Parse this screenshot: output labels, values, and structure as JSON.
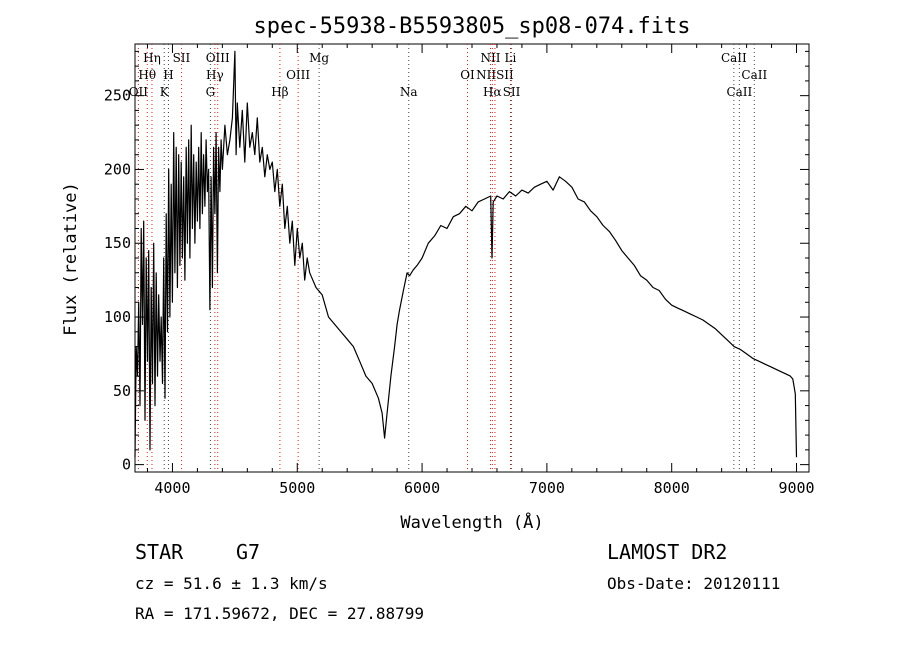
{
  "chart_data": {
    "type": "line",
    "title": "spec-55938-B5593805_sp08-074.fits",
    "xlabel": "Wavelength (Å)",
    "ylabel": "Flux (relative)",
    "xlim": [
      3700,
      9100
    ],
    "ylim": [
      -5,
      285
    ],
    "x_ticks": [
      4000,
      5000,
      6000,
      7000,
      8000,
      9000
    ],
    "y_ticks": [
      0,
      50,
      100,
      150,
      200,
      250
    ],
    "grid": false,
    "series": [
      {
        "x": [
          3700,
          3710,
          3720,
          3730,
          3740,
          3750,
          3760,
          3770,
          3780,
          3790,
          3800,
          3810,
          3820,
          3830,
          3840,
          3850,
          3860,
          3870,
          3880,
          3890,
          3900,
          3910,
          3920,
          3930,
          3940,
          3950,
          3960,
          3970,
          3980,
          3990,
          4000,
          4010,
          4020,
          4030,
          4040,
          4050,
          4060,
          4070,
          4080,
          4090,
          4100,
          4110,
          4120,
          4130,
          4140,
          4150,
          4160,
          4170,
          4180,
          4190,
          4200,
          4210,
          4220,
          4230,
          4240,
          4250,
          4260,
          4270,
          4280,
          4290,
          4300,
          4310,
          4320,
          4330,
          4340,
          4350,
          4360,
          4370,
          4380,
          4390,
          4400,
          4420,
          4440,
          4460,
          4480,
          4500,
          4510,
          4520,
          4540,
          4560,
          4580,
          4600,
          4620,
          4640,
          4660,
          4680,
          4700,
          4720,
          4740,
          4760,
          4780,
          4800,
          4820,
          4840,
          4860,
          4880,
          4900,
          4920,
          4940,
          4960,
          4980,
          5000,
          5020,
          5040,
          5060,
          5080,
          5100,
          5150,
          5200,
          5250,
          5300,
          5350,
          5400,
          5450,
          5500,
          5550,
          5600,
          5650,
          5680,
          5700,
          5720,
          5750,
          5780,
          5800,
          5820,
          5850,
          5880,
          5900,
          5930,
          5960,
          6000,
          6050,
          6100,
          6150,
          6200,
          6250,
          6300,
          6350,
          6400,
          6450,
          6500,
          6550,
          6560,
          6570,
          6600,
          6650,
          6700,
          6750,
          6800,
          6850,
          6900,
          6950,
          7000,
          7050,
          7100,
          7150,
          7200,
          7250,
          7300,
          7350,
          7400,
          7450,
          7500,
          7550,
          7600,
          7650,
          7700,
          7750,
          7800,
          7850,
          7900,
          7950,
          8000,
          8050,
          8100,
          8150,
          8200,
          8250,
          8300,
          8350,
          8400,
          8450,
          8500,
          8550,
          8600,
          8650,
          8700,
          8750,
          8800,
          8850,
          8900,
          8950,
          8970,
          8990,
          9000
        ],
        "y": [
          5,
          80,
          60,
          110,
          40,
          160,
          95,
          165,
          30,
          140,
          70,
          145,
          10,
          120,
          55,
          150,
          40,
          130,
          60,
          115,
          70,
          100,
          55,
          140,
          45,
          170,
          90,
          200,
          100,
          190,
          110,
          225,
          130,
          215,
          120,
          210,
          135,
          205,
          140,
          195,
          125,
          215,
          150,
          220,
          140,
          230,
          160,
          210,
          150,
          205,
          165,
          215,
          160,
          225,
          170,
          210,
          175,
          220,
          185,
          200,
          105,
          195,
          120,
          215,
          170,
          225,
          130,
          215,
          185,
          220,
          200,
          230,
          210,
          220,
          235,
          280,
          210,
          245,
          215,
          240,
          205,
          245,
          215,
          225,
          210,
          235,
          205,
          215,
          195,
          210,
          200,
          205,
          185,
          200,
          175,
          190,
          160,
          175,
          150,
          165,
          135,
          160,
          140,
          150,
          125,
          140,
          130,
          120,
          115,
          100,
          95,
          90,
          85,
          80,
          70,
          60,
          55,
          45,
          35,
          18,
          35,
          60,
          80,
          95,
          105,
          118,
          130,
          128,
          132,
          135,
          140,
          150,
          155,
          162,
          160,
          168,
          170,
          175,
          172,
          178,
          180,
          182,
          140,
          178,
          182,
          180,
          185,
          182,
          186,
          184,
          188,
          190,
          192,
          186,
          195,
          192,
          188,
          180,
          178,
          172,
          168,
          162,
          158,
          152,
          145,
          140,
          135,
          128,
          125,
          120,
          118,
          112,
          108,
          106,
          104,
          102,
          100,
          98,
          95,
          92,
          88,
          84,
          80,
          78,
          75,
          72,
          70,
          68,
          66,
          64,
          62,
          60,
          58,
          48,
          5
        ]
      }
    ],
    "lines_red": [
      {
        "label": "Hη",
        "x": 3836,
        "row": 1
      },
      {
        "label": "Hθ",
        "x": 3798,
        "row": 2
      },
      {
        "label": "OII",
        "x": 3727,
        "row": 3
      },
      {
        "label": "SII",
        "x": 4072,
        "row": 1
      },
      {
        "label": "OIII",
        "x": 4363,
        "row": 1
      },
      {
        "label": "Hγ",
        "x": 4340,
        "row": 2
      },
      {
        "label": "Hβ",
        "x": 4861,
        "row": 3
      },
      {
        "label": "OIII",
        "x": 5007,
        "row": 2
      },
      {
        "label": "OI",
        "x": 6364,
        "row": 2
      },
      {
        "label": "NII",
        "x": 6548,
        "row": 1
      },
      {
        "label": "NIISII",
        "x": 6584,
        "row": 2
      },
      {
        "label": "Hα",
        "x": 6563,
        "row": 3
      },
      {
        "label": "SII",
        "x": 6717,
        "row": 3
      }
    ],
    "lines_black": [
      {
        "label": "H",
        "x": 3968,
        "row": 2
      },
      {
        "label": "K",
        "x": 3934,
        "row": 3
      },
      {
        "label": "G",
        "x": 4304,
        "row": 3
      },
      {
        "label": "Mg",
        "x": 5175,
        "row": 1
      },
      {
        "label": "Na",
        "x": 5893,
        "row": 3
      },
      {
        "label": "Li",
        "x": 6708,
        "row": 1
      },
      {
        "label": "CaII",
        "x": 8498,
        "row": 1
      },
      {
        "label": "CaII",
        "x": 8662,
        "row": 2
      },
      {
        "label": "CaII",
        "x": 8542,
        "row": 3
      }
    ]
  },
  "footer": {
    "object_class": "STAR",
    "subclass": "G7",
    "survey": "LAMOST DR2",
    "cz": "cz = 51.6 ± 1.3 km/s",
    "obs_date": "Obs-Date: 20120111",
    "coords": "RA = 171.59672, DEC =  27.88799"
  }
}
